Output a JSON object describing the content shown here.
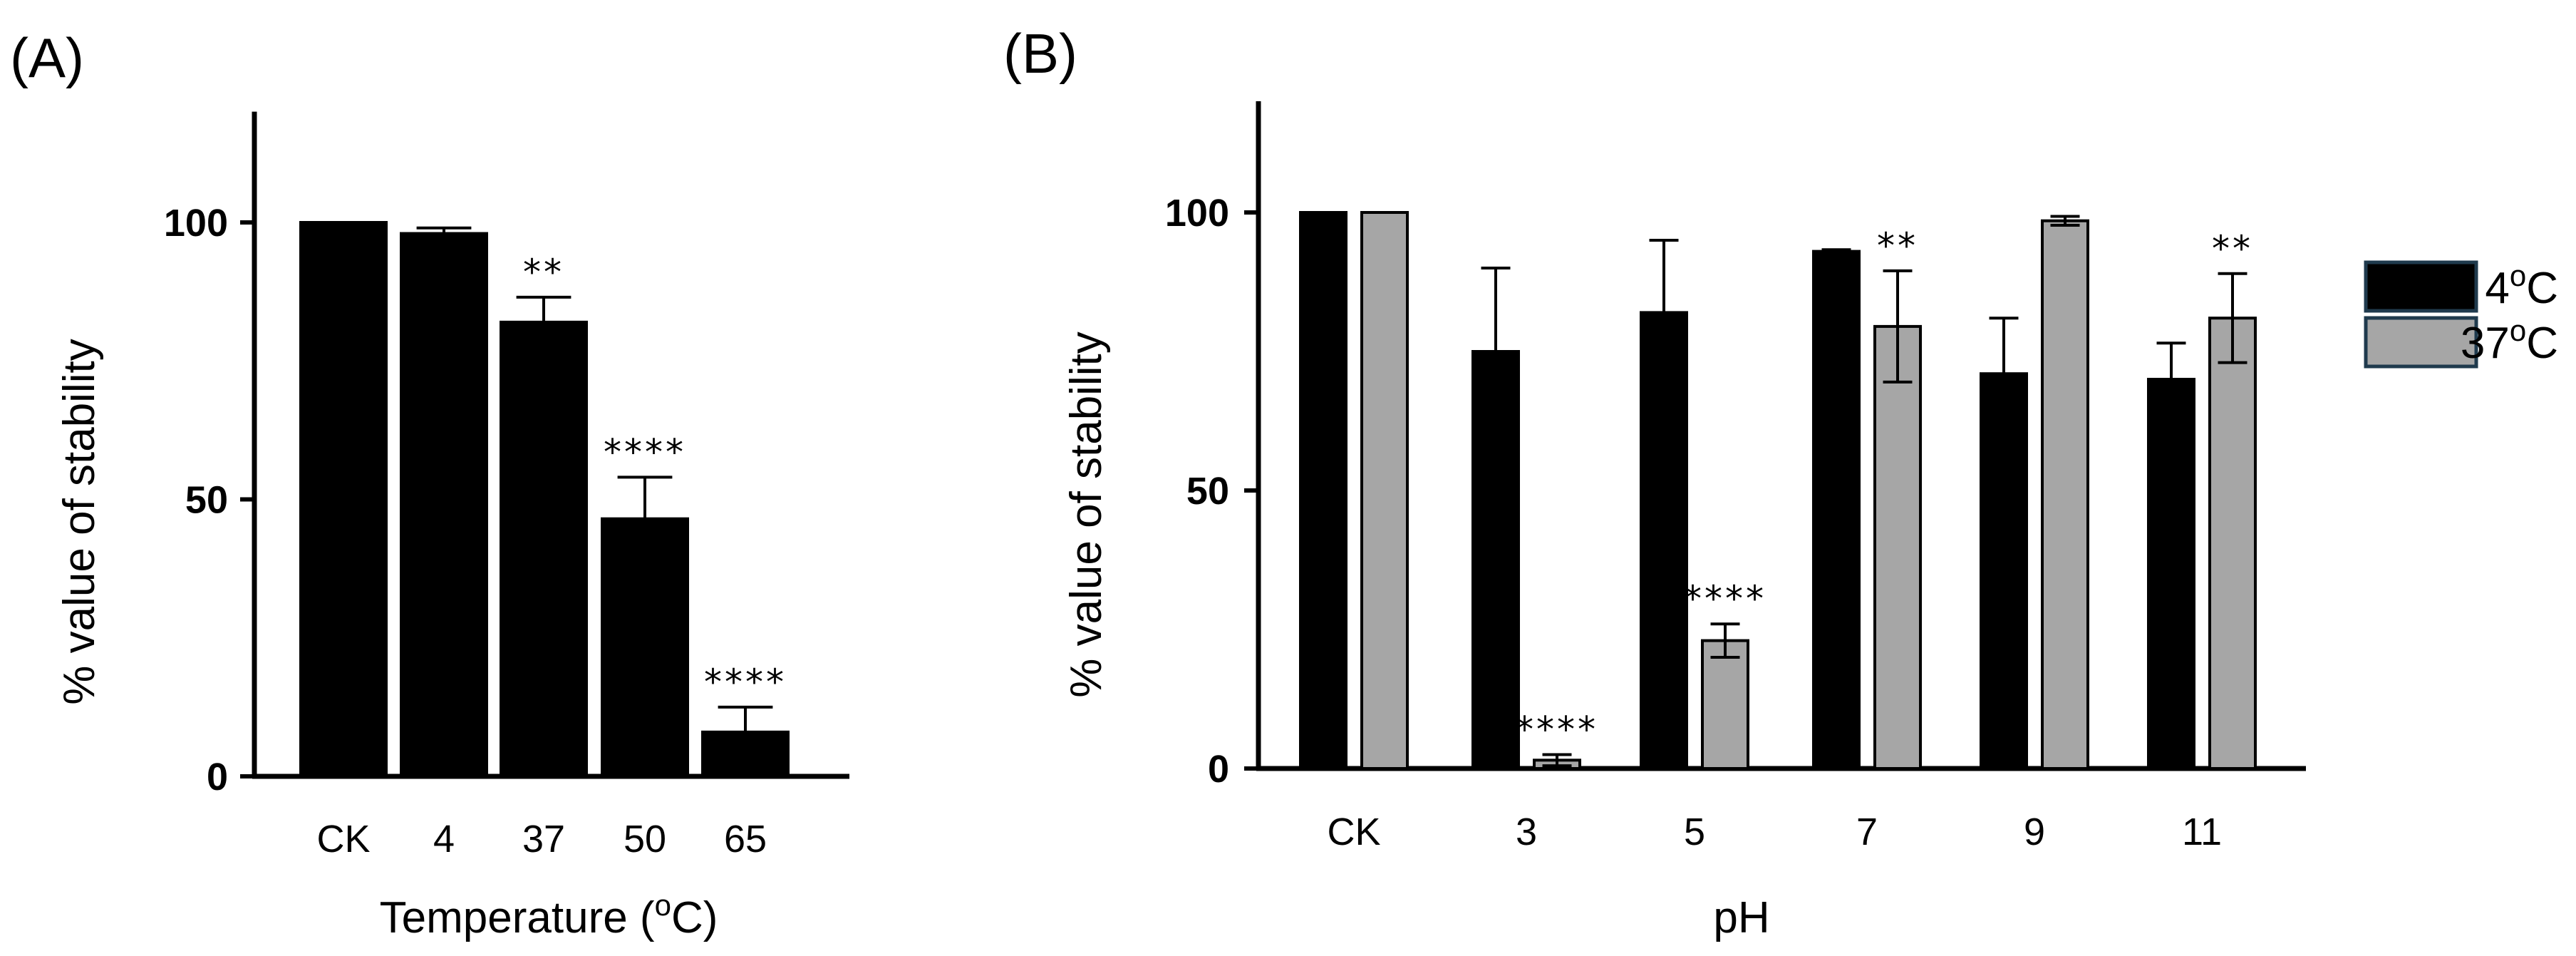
{
  "panels": [
    {
      "label": "(A)",
      "ylabel": "% value of stability",
      "xlabel_main": "Temperature (",
      "xlabel_sup": "o",
      "xlabel_end": "C)"
    },
    {
      "label": "(B)",
      "ylabel": "% value of stability",
      "xlabel": "pH"
    }
  ],
  "legend": [
    {
      "main": "4",
      "sup": "o",
      "end": "C",
      "color": "#000000"
    },
    {
      "main": "37",
      "sup": "o",
      "end": "C",
      "color": "#a6a6a6"
    }
  ],
  "chart_data": [
    {
      "type": "bar",
      "title": "",
      "xlabel": "Temperature (oC)",
      "ylabel": "% value of stability",
      "ylim": [
        0,
        120
      ],
      "yticks": [
        0,
        50,
        100
      ],
      "categories": [
        "CK",
        "4",
        "37",
        "50",
        "65"
      ],
      "series": [
        {
          "values": [
            100,
            98,
            82,
            46.5,
            8
          ],
          "errors": [
            0,
            1,
            4.5,
            7.5,
            4.5
          ],
          "color": "#000000"
        }
      ],
      "annotations": [
        "",
        "",
        "**",
        "****",
        "****"
      ],
      "grid": false
    },
    {
      "type": "bar",
      "title": "",
      "xlabel": "pH",
      "ylabel": "% value of stability",
      "ylim": [
        0,
        120
      ],
      "yticks": [
        0,
        50,
        100
      ],
      "categories": [
        "CK",
        "3",
        "5",
        "7",
        "9",
        "11"
      ],
      "series": [
        {
          "name": "4oC",
          "values": [
            100,
            75,
            82,
            93,
            71,
            70
          ],
          "errors": [
            0,
            15,
            13,
            0.3,
            10,
            6.5
          ],
          "color": "#000000"
        },
        {
          "name": "37oC",
          "values": [
            100,
            1.5,
            23,
            79.5,
            98.5,
            81
          ],
          "errors": [
            0,
            1,
            3,
            10,
            0.8,
            8
          ],
          "color": "#a6a6a6"
        }
      ],
      "annotations": [
        "",
        "****",
        "****",
        "**",
        "",
        "**"
      ],
      "legend_position": "right",
      "grid": false
    }
  ]
}
